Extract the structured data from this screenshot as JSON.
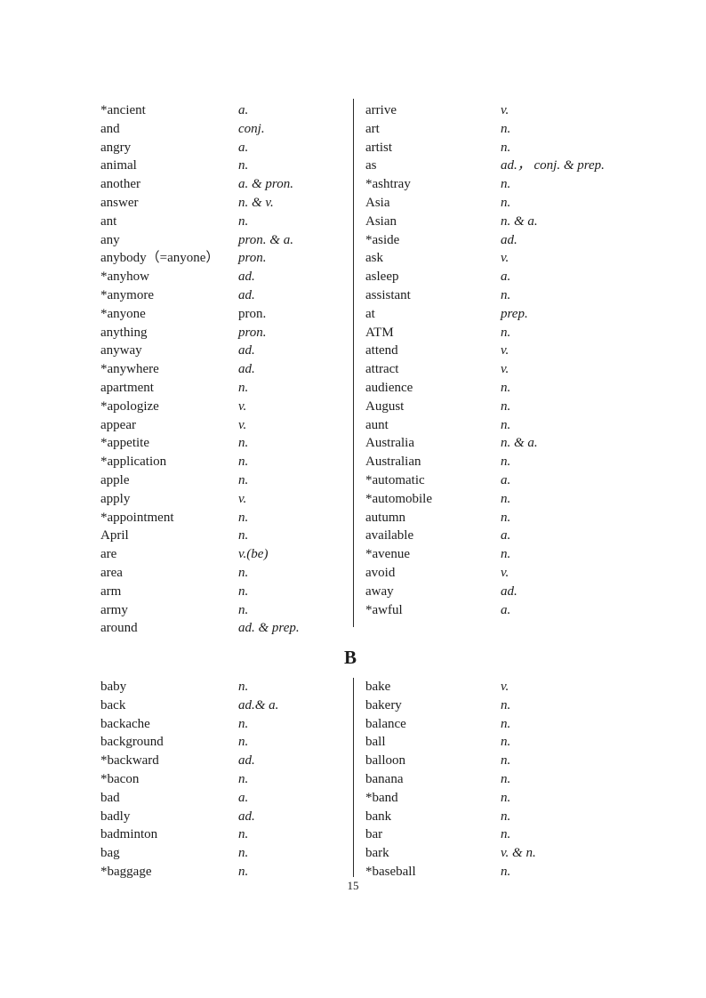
{
  "page": {
    "number": "15"
  },
  "sections": {
    "a": {
      "left": [
        {
          "word": "*ancient",
          "pos": "a."
        },
        {
          "word": "and",
          "pos": "conj."
        },
        {
          "word": "angry",
          "pos": "a."
        },
        {
          "word": "animal",
          "pos": "n."
        },
        {
          "word": "another",
          "pos": "a. & pron."
        },
        {
          "word": "answer",
          "pos": "n. & v."
        },
        {
          "word": "ant",
          "pos": "n."
        },
        {
          "word": "any",
          "pos": "pron. & a."
        },
        {
          "word": "anybody（=anyone）",
          "pos": "pron."
        },
        {
          "word": "*anyhow",
          "pos": "ad."
        },
        {
          "word": "*anymore",
          "pos": "ad."
        },
        {
          "word": "*anyone",
          "pos": "pron.",
          "upright": true
        },
        {
          "word": "anything",
          "pos": "pron."
        },
        {
          "word": "anyway",
          "pos": "ad."
        },
        {
          "word": "*anywhere",
          "pos": "ad."
        },
        {
          "word": "apartment",
          "pos": "n."
        },
        {
          "word": "*apologize",
          "pos": "v."
        },
        {
          "word": "appear",
          "pos": "v."
        },
        {
          "word": "*appetite",
          "pos": "n."
        },
        {
          "word": "*application",
          "pos": "n."
        },
        {
          "word": "apple",
          "pos": "n."
        },
        {
          "word": "apply",
          "pos": "v."
        },
        {
          "word": "*appointment",
          "pos": "n."
        },
        {
          "word": "April",
          "pos": "n."
        },
        {
          "word": "are",
          "pos": "v.(be)"
        },
        {
          "word": "area",
          "pos": "n."
        },
        {
          "word": "arm",
          "pos": "n."
        },
        {
          "word": "army",
          "pos": "n."
        },
        {
          "word": "around",
          "pos": "ad. & prep."
        }
      ],
      "right": [
        {
          "word": "arrive",
          "pos": "v."
        },
        {
          "word": "art",
          "pos": "n."
        },
        {
          "word": "artist",
          "pos": "n."
        },
        {
          "word": "as",
          "pos": "ad.， conj. & prep."
        },
        {
          "word": "*ashtray",
          "pos": "n."
        },
        {
          "word": "Asia",
          "pos": "n."
        },
        {
          "word": "Asian",
          "pos": "n. & a."
        },
        {
          "word": "*aside",
          "pos": "ad."
        },
        {
          "word": "ask",
          "pos": "v."
        },
        {
          "word": "asleep",
          "pos": "a."
        },
        {
          "word": "assistant",
          "pos": "n."
        },
        {
          "word": "at",
          "pos": "prep."
        },
        {
          "word": "ATM",
          "pos": "n."
        },
        {
          "word": "attend",
          "pos": "v."
        },
        {
          "word": "attract",
          "pos": "v."
        },
        {
          "word": "audience",
          "pos": "n."
        },
        {
          "word": "August",
          "pos": "n."
        },
        {
          "word": "aunt",
          "pos": "n."
        },
        {
          "word": "Australia",
          "pos": "n. & a."
        },
        {
          "word": "Australian",
          "pos": "n."
        },
        {
          "word": "*automatic",
          "pos": "a."
        },
        {
          "word": "*automobile",
          "pos": "n."
        },
        {
          "word": "autumn",
          "pos": "n."
        },
        {
          "word": "available",
          "pos": "a."
        },
        {
          "word": "*avenue",
          "pos": "n."
        },
        {
          "word": "avoid",
          "pos": "v."
        },
        {
          "word": "away",
          "pos": "ad."
        },
        {
          "word": "*awful",
          "pos": "a."
        }
      ]
    },
    "b": {
      "header": "B",
      "left": [
        {
          "word": "baby",
          "pos": "n."
        },
        {
          "word": "back",
          "pos": "ad.& a."
        },
        {
          "word": "backache",
          "pos": "n."
        },
        {
          "word": "background",
          "pos": "n."
        },
        {
          "word": "*backward",
          "pos": "ad."
        },
        {
          "word": "*bacon",
          "pos": "n."
        },
        {
          "word": "bad",
          "pos": "a."
        },
        {
          "word": "badly",
          "pos": "ad."
        },
        {
          "word": "badminton",
          "pos": "n."
        },
        {
          "word": "bag",
          "pos": "n."
        },
        {
          "word": "*baggage",
          "pos": "n."
        }
      ],
      "right": [
        {
          "word": "bake",
          "pos": "v."
        },
        {
          "word": "bakery",
          "pos": "n."
        },
        {
          "word": "balance",
          "pos": "n."
        },
        {
          "word": "ball",
          "pos": "n."
        },
        {
          "word": "balloon",
          "pos": "n."
        },
        {
          "word": "banana",
          "pos": "n."
        },
        {
          "word": "*band",
          "pos": "n."
        },
        {
          "word": "bank",
          "pos": "n."
        },
        {
          "word": "bar",
          "pos": "n."
        },
        {
          "word": "bark",
          "pos": "v. & n."
        },
        {
          "word": "*baseball",
          "pos": "n."
        }
      ]
    }
  }
}
